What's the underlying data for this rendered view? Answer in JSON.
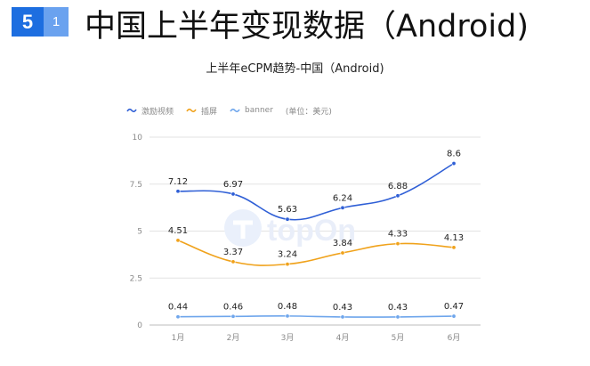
{
  "header": {
    "badge_main": "5",
    "badge_sub": "1",
    "title": "中国上半年变现数据（Android)"
  },
  "colors": {
    "badge_main": "#1d6ee0",
    "badge_sub": "#6aa2ef"
  },
  "watermark": "topOn",
  "legend": {
    "unit": "(单位：美元)"
  },
  "chart_data": {
    "type": "line",
    "title": "上半年eCPM趋势-中国（Android)",
    "xlabel": "",
    "ylabel": "",
    "categories": [
      "1月",
      "2月",
      "3月",
      "4月",
      "5月",
      "6月"
    ],
    "ylim": [
      0,
      10
    ],
    "yticks": [
      "0",
      "2.5",
      "5",
      "7.5",
      "10"
    ],
    "yticks_values": [
      0,
      2.5,
      5,
      7.5,
      10
    ],
    "grid": true,
    "legend_position": "top-left",
    "series": [
      {
        "name": "激励视频",
        "color": "#2f5fd6",
        "values": [
          7.12,
          6.97,
          5.63,
          6.24,
          6.88,
          8.6
        ],
        "labels": [
          "7.12",
          "6.97",
          "5.63",
          "6.24",
          "6.88",
          "8.6"
        ]
      },
      {
        "name": "插屏",
        "color": "#f0a21b",
        "values": [
          4.51,
          3.37,
          3.24,
          3.84,
          4.33,
          4.13
        ],
        "labels": [
          "4.51",
          "3.37",
          "3.24",
          "3.84",
          "4.33",
          "4.13"
        ]
      },
      {
        "name": "banner",
        "color": "#6fa6ec",
        "values": [
          0.44,
          0.46,
          0.48,
          0.43,
          0.43,
          0.47
        ],
        "labels": [
          "0.44",
          "0.46",
          "0.48",
          "0.43",
          "0.43",
          "0.47"
        ]
      }
    ]
  }
}
